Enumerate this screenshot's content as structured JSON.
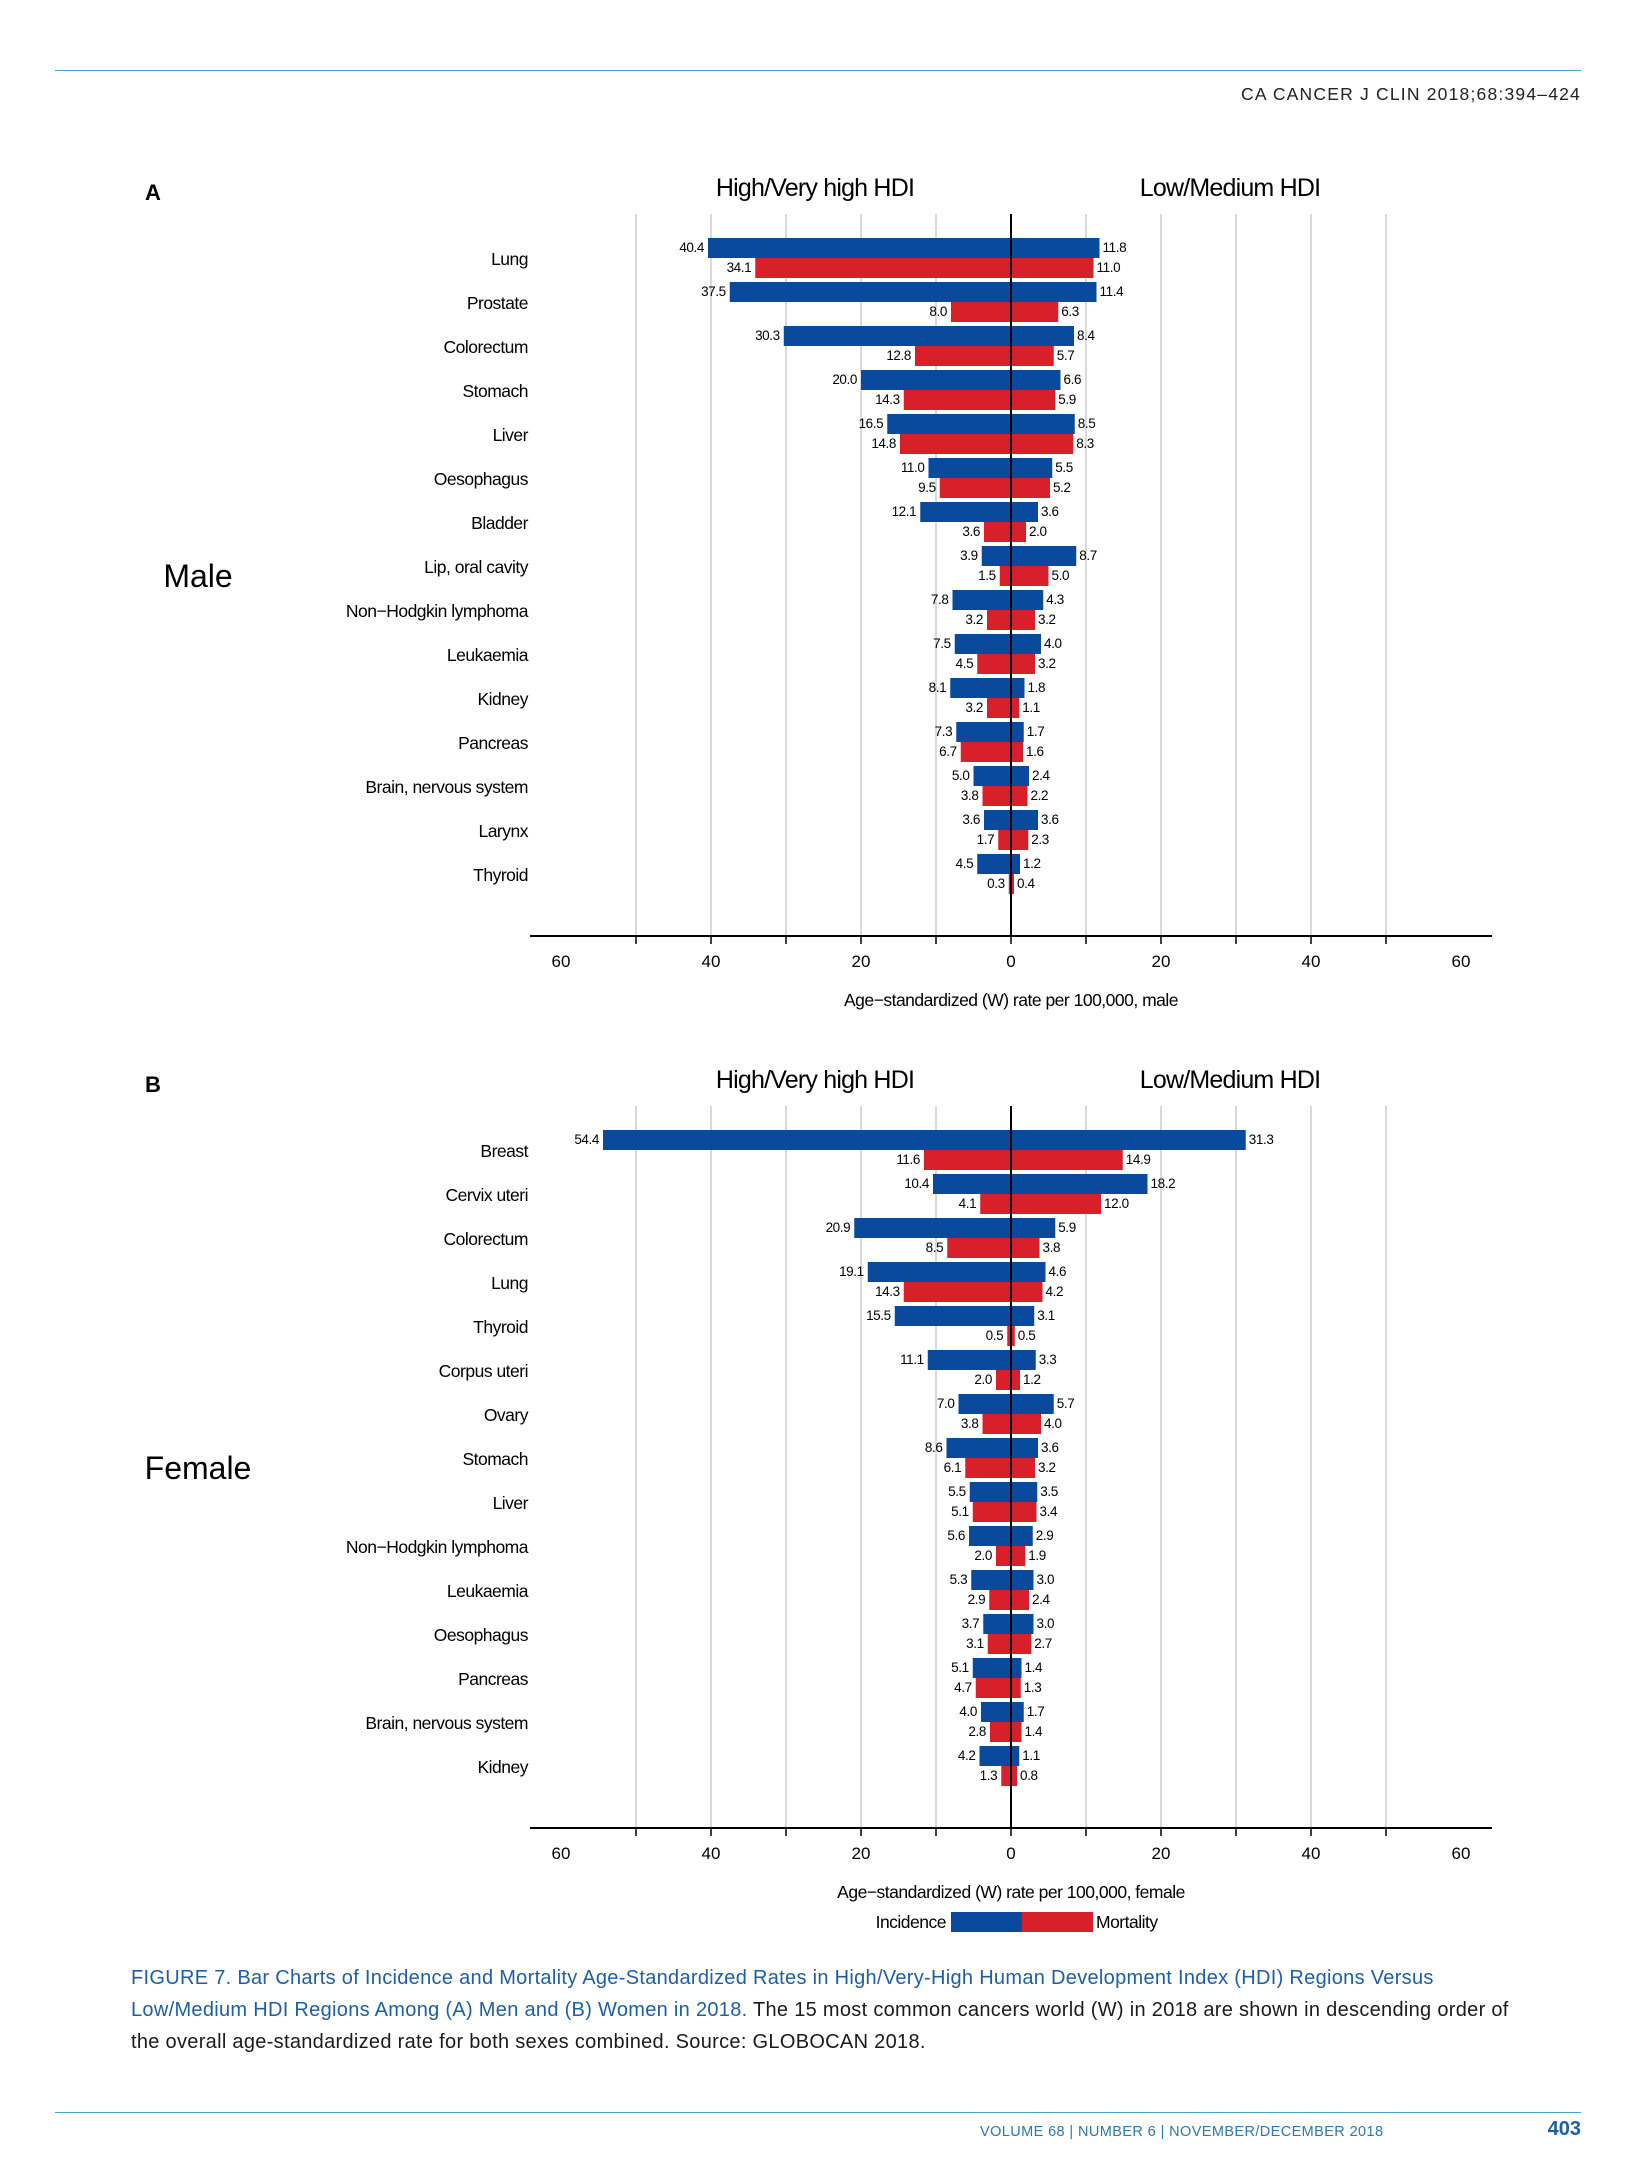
{
  "header": {
    "journal": "CA CANCER J CLIN 2018;68:394–424"
  },
  "colors": {
    "incidence": "#0a4a9c",
    "mortality": "#d7202a",
    "grid": "#c9c9c9",
    "axis": "#000000"
  },
  "chart_data": [
    {
      "type": "bar",
      "panel": "A",
      "sex_label": "Male",
      "left_title": "High/Very high HDI",
      "right_title": "Low/Medium HDI",
      "xlabel": "Age−standardized (W) rate per 100,000, male",
      "xlim": [
        -60,
        60
      ],
      "ticks": [
        "60",
        "40",
        "20",
        "0",
        "20",
        "40",
        "60"
      ],
      "grid": true,
      "categories": [
        "Lung",
        "Prostate",
        "Colorectum",
        "Stomach",
        "Liver",
        "Oesophagus",
        "Bladder",
        "Lip, oral cavity",
        "Non−Hodgkin lymphoma",
        "Leukaemia",
        "Kidney",
        "Pancreas",
        "Brain, nervous system",
        "Larynx",
        "Thyroid"
      ],
      "series": [
        {
          "name": "Incidence",
          "region": "High/Very high HDI",
          "values": [
            40.4,
            37.5,
            30.3,
            20.0,
            16.5,
            11.0,
            12.1,
            3.9,
            7.8,
            7.5,
            8.1,
            7.3,
            5.0,
            3.6,
            4.5
          ],
          "labels": [
            "40.4",
            "37.5",
            "30.3",
            "20.0",
            "16.5",
            "11.0",
            "12.1",
            "3.9",
            "7.8",
            "7.5",
            "8.1",
            "7.3",
            "5.0",
            "3.6",
            "4.5"
          ]
        },
        {
          "name": "Mortality",
          "region": "High/Very high HDI",
          "values": [
            34.1,
            8.0,
            12.8,
            14.3,
            14.8,
            9.5,
            3.6,
            1.5,
            3.2,
            4.5,
            3.2,
            6.7,
            3.8,
            1.7,
            0.3
          ],
          "labels": [
            "34.1",
            "8.0",
            "12.8",
            "14.3",
            "14.8",
            "9.5",
            "3.6",
            "1.5",
            "3.2",
            "4.5",
            "3.2",
            "6.7",
            "3.8",
            "1.7",
            "0.3"
          ]
        },
        {
          "name": "Incidence",
          "region": "Low/Medium HDI",
          "values": [
            11.8,
            11.4,
            8.4,
            6.6,
            8.5,
            5.5,
            3.6,
            8.7,
            4.3,
            4.0,
            1.8,
            1.7,
            2.4,
            3.6,
            1.2
          ],
          "labels": [
            "11.8",
            "11.4",
            "8.4",
            "6.6",
            "8.5",
            "5.5",
            "3.6",
            "8.7",
            "4.3",
            "4.0",
            "1.8",
            "1.7",
            "2.4",
            "3.6",
            "1.2"
          ]
        },
        {
          "name": "Mortality",
          "region": "Low/Medium HDI",
          "values": [
            11.0,
            6.3,
            5.7,
            5.9,
            8.3,
            5.2,
            2.0,
            5.0,
            3.2,
            3.2,
            1.1,
            1.6,
            2.2,
            2.3,
            0.4
          ],
          "labels": [
            "11.0",
            "6.3",
            "5.7",
            "5.9",
            "8.3",
            "5.2",
            "2.0",
            "5.0",
            "3.2",
            "3.2",
            "1.1",
            "1.6",
            "2.2",
            "2.3",
            "0.4"
          ]
        }
      ]
    },
    {
      "type": "bar",
      "panel": "B",
      "sex_label": "Female",
      "left_title": "High/Very high HDI",
      "right_title": "Low/Medium HDI",
      "xlabel": "Age−standardized (W) rate per 100,000, female",
      "xlim": [
        -60,
        60
      ],
      "ticks": [
        "60",
        "40",
        "20",
        "0",
        "20",
        "40",
        "60"
      ],
      "grid": true,
      "legend": {
        "incidence_label": "Incidence",
        "mortality_label": "Mortality",
        "position": "bottom-center"
      },
      "categories": [
        "Breast",
        "Cervix uteri",
        "Colorectum",
        "Lung",
        "Thyroid",
        "Corpus uteri",
        "Ovary",
        "Stomach",
        "Liver",
        "Non−Hodgkin lymphoma",
        "Leukaemia",
        "Oesophagus",
        "Pancreas",
        "Brain, nervous system",
        "Kidney"
      ],
      "series": [
        {
          "name": "Incidence",
          "region": "High/Very high HDI",
          "values": [
            54.4,
            10.4,
            20.9,
            19.1,
            15.5,
            11.1,
            7.0,
            8.6,
            5.5,
            5.6,
            5.3,
            3.7,
            5.1,
            4.0,
            4.2
          ],
          "labels": [
            "54.4",
            "10.4",
            "20.9",
            "19.1",
            "15.5",
            "11.1",
            "7.0",
            "8.6",
            "5.5",
            "5.6",
            "5.3",
            "3.7",
            "5.1",
            "4.0",
            "4.2"
          ]
        },
        {
          "name": "Mortality",
          "region": "High/Very high HDI",
          "values": [
            11.6,
            4.1,
            8.5,
            14.3,
            0.5,
            2.0,
            3.8,
            6.1,
            5.1,
            2.0,
            2.9,
            3.1,
            4.7,
            2.8,
            1.3
          ],
          "labels": [
            "11.6",
            "4.1",
            "8.5",
            "14.3",
            "0.5",
            "2.0",
            "3.8",
            "6.1",
            "5.1",
            "2.0",
            "2.9",
            "3.1",
            "4.7",
            "2.8",
            "1.3"
          ]
        },
        {
          "name": "Incidence",
          "region": "Low/Medium HDI",
          "values": [
            31.3,
            18.2,
            5.9,
            4.6,
            3.1,
            3.3,
            5.7,
            3.6,
            3.5,
            2.9,
            3.0,
            3.0,
            1.4,
            1.7,
            1.1
          ],
          "labels": [
            "31.3",
            "18.2",
            "5.9",
            "4.6",
            "3.1",
            "3.3",
            "5.7",
            "3.6",
            "3.5",
            "2.9",
            "3.0",
            "3.0",
            "1.4",
            "1.7",
            "1.1"
          ]
        },
        {
          "name": "Mortality",
          "region": "Low/Medium HDI",
          "values": [
            14.9,
            12.0,
            3.8,
            4.2,
            0.5,
            1.2,
            4.0,
            3.2,
            3.4,
            1.9,
            2.4,
            2.7,
            1.3,
            1.4,
            0.8
          ],
          "labels": [
            "14.9",
            "12.0",
            "3.8",
            "4.2",
            "0.5",
            "1.2",
            "4.0",
            "3.2",
            "3.4",
            "1.9",
            "2.4",
            "2.7",
            "1.3",
            "1.4",
            "0.8"
          ]
        }
      ]
    }
  ],
  "caption": {
    "title": "FIGURE 7. Bar Charts of Incidence and Mortality Age-Standardized Rates in High/Very-High Human Development Index (HDI) Regions Versus Low/Medium HDI Regions Among (A) Men and (B) Women in 2018.",
    "body": " The 15 most common cancers world (W) in 2018 are shown in descending order of the overall age-standardized rate for both sexes combined. Source: GLOBOCAN 2018."
  },
  "footer": {
    "issue": "VOLUME 68 | NUMBER 6 | NOVEMBER/DECEMBER 2018",
    "page": "403"
  }
}
